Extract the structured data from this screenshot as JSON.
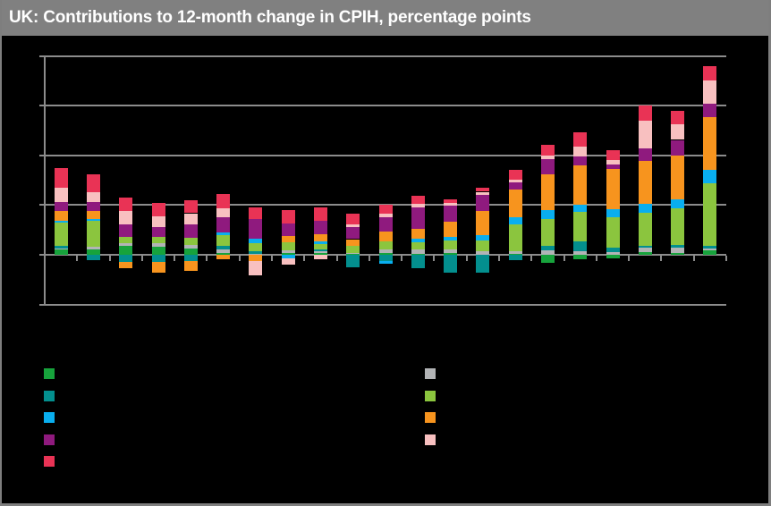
{
  "window": {
    "title": "UK: Contributions to 12-month change in CPIH, percentage points"
  },
  "theme": {
    "background": "#000000",
    "titlebar_bg": "#808080",
    "titlebar_text": "#FFFFFF",
    "frame_border": "#7E7E7E",
    "gridline": "#8C8C8C",
    "axis": "#8C8C8C"
  },
  "chart_data": {
    "type": "bar",
    "subtype": "stacked-column",
    "title": "UK: Contributions to 12-month change in CPIH, percentage points",
    "ylabel": "percentage points",
    "ylim": [
      -1,
      4
    ],
    "ytick_step": 1,
    "grid": true,
    "axis_tick_labels_visible": false,
    "x_labels_visible": false,
    "n_columns": 21,
    "stack_order_note": "series listed bottom-to-top of positive stack",
    "series": [
      {
        "name": "green",
        "color": "#17A33C",
        "values": [
          0.11,
          0.11,
          0.18,
          0.17,
          0.13,
          0.04,
          0.0,
          0.04,
          0.03,
          0.02,
          0.04,
          0.02,
          0.04,
          0.0,
          0.02,
          -0.16,
          -0.09,
          -0.07,
          0.05,
          0.04,
          0.09
        ]
      },
      {
        "name": "gray",
        "color": "#B2B4B6",
        "values": [
          0.02,
          0.05,
          0.05,
          0.07,
          0.07,
          0.07,
          0.02,
          0.05,
          0.04,
          0.02,
          0.07,
          0.09,
          0.07,
          0.07,
          0.05,
          0.09,
          0.07,
          0.05,
          0.09,
          0.11,
          0.04
        ]
      },
      {
        "name": "teal",
        "color": "#038F8E",
        "values": [
          0.05,
          -0.1,
          -0.15,
          -0.15,
          -0.13,
          0.07,
          0.05,
          0.0,
          0.03,
          -0.25,
          -0.13,
          -0.27,
          -0.36,
          -0.36,
          -0.11,
          0.09,
          0.2,
          0.09,
          0.04,
          0.05,
          0.05
        ]
      },
      {
        "name": "light-green",
        "color": "#8BC53E",
        "values": [
          0.47,
          0.52,
          0.13,
          0.12,
          0.14,
          0.21,
          0.16,
          0.16,
          0.11,
          0.14,
          0.16,
          0.14,
          0.18,
          0.22,
          0.54,
          0.54,
          0.59,
          0.62,
          0.67,
          0.74,
          1.26
        ]
      },
      {
        "name": "blue",
        "color": "#09AEEF",
        "values": [
          0.04,
          0.04,
          0.0,
          0.0,
          0.0,
          0.06,
          0.09,
          -0.07,
          0.06,
          0.0,
          -0.05,
          0.07,
          0.07,
          0.11,
          0.15,
          0.18,
          0.14,
          0.16,
          0.18,
          0.18,
          0.27
        ]
      },
      {
        "name": "orange",
        "color": "#F7941E",
        "values": [
          0.19,
          0.16,
          -0.12,
          -0.21,
          -0.2,
          -0.09,
          -0.13,
          0.13,
          0.14,
          0.13,
          0.19,
          0.2,
          0.31,
          0.49,
          0.56,
          0.72,
          0.79,
          0.81,
          0.86,
          0.88,
          1.06
        ]
      },
      {
        "name": "purple",
        "color": "#8F1A7E",
        "values": [
          0.18,
          0.18,
          0.25,
          0.2,
          0.27,
          0.3,
          0.4,
          0.25,
          0.27,
          0.24,
          0.29,
          0.43,
          0.32,
          0.32,
          0.14,
          0.31,
          0.2,
          0.09,
          0.25,
          0.31,
          0.27
        ]
      },
      {
        "name": "pink",
        "color": "#F8C0C0",
        "values": [
          0.29,
          0.2,
          0.27,
          0.22,
          0.22,
          0.18,
          -0.28,
          -0.13,
          -0.09,
          0.06,
          0.07,
          0.07,
          0.05,
          0.05,
          0.05,
          0.07,
          0.19,
          0.09,
          0.56,
          0.31,
          0.47
        ]
      },
      {
        "name": "red",
        "color": "#E93355",
        "values": [
          0.4,
          0.36,
          0.27,
          0.27,
          0.26,
          0.29,
          0.23,
          0.27,
          0.27,
          0.22,
          0.18,
          0.16,
          0.07,
          0.08,
          0.2,
          0.21,
          0.28,
          0.2,
          0.31,
          0.27,
          0.29
        ]
      }
    ],
    "legend": {
      "position": "bottom-left",
      "labels_visible": false,
      "column1": [
        "green",
        "teal",
        "blue",
        "purple",
        "red"
      ],
      "column2": [
        "gray",
        "light-green",
        "orange",
        "pink"
      ]
    }
  }
}
